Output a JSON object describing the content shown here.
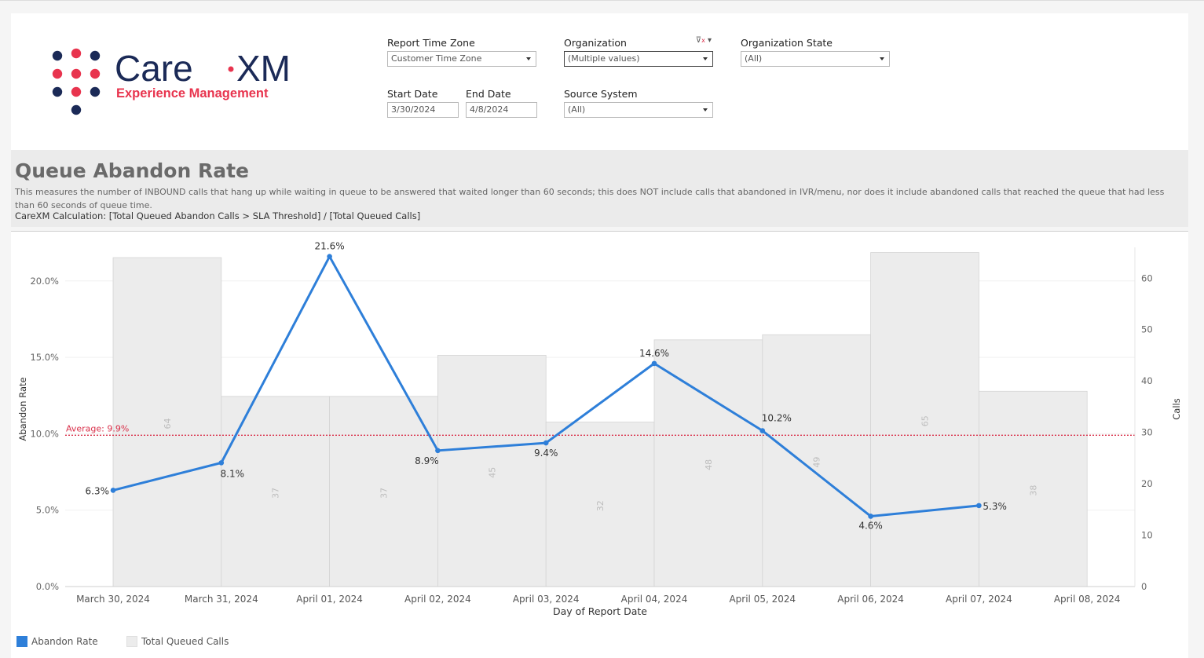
{
  "brand": {
    "name_part1": "Care",
    "name_part2": "XM",
    "tagline": "Experience Management",
    "colors": {
      "navy": "#1b2a57",
      "red": "#e8344e"
    }
  },
  "filters": {
    "report_time_zone": {
      "label": "Report Time Zone",
      "value": "Customer Time Zone"
    },
    "organization": {
      "label": "Organization",
      "value": "(Multiple values)"
    },
    "organization_state": {
      "label": "Organization State",
      "value": "(All)"
    },
    "start_date": {
      "label": "Start Date",
      "value": "3/30/2024"
    },
    "end_date": {
      "label": "End Date",
      "value": "4/8/2024"
    },
    "source_system": {
      "label": "Source System",
      "value": "(All)"
    }
  },
  "header": {
    "title": "Queue Abandon Rate",
    "description": "This measures the number of INBOUND calls that hang up while waiting in queue to be answered that waited longer than 60 seconds; this does NOT include calls that abandoned in IVR/menu, nor does it include abandoned calls that reached the queue that had less than 60 seconds of queue time.",
    "calculation": "CareXM Calculation: [Total Queued Abandon Calls > SLA Threshold] / [Total Queued Calls]"
  },
  "legend": [
    {
      "name": "Abandon Rate",
      "color": "#2e7fd9"
    },
    {
      "name": "Total Queued Calls",
      "color": "#ececec"
    }
  ],
  "chart_data": {
    "type": "bar",
    "xlabel": "Day of Report Date",
    "ylabel": "Abandon Rate",
    "y2label": "Calls",
    "categories": [
      "March 30, 2024",
      "March 31, 2024",
      "April 01, 2024",
      "April 02, 2024",
      "April 03, 2024",
      "April 04, 2024",
      "April 05, 2024",
      "April 06, 2024",
      "April 07, 2024",
      "April 08, 2024"
    ],
    "series": [
      {
        "name": "Total Queued Calls",
        "type": "bar",
        "axis": "right",
        "color": "#ececec",
        "values": [
          64,
          37,
          37,
          45,
          32,
          48,
          49,
          65,
          38,
          null
        ],
        "labels": [
          "64",
          "37",
          "37",
          "45",
          "32",
          "48",
          "49",
          "65",
          "38",
          ""
        ]
      },
      {
        "name": "Abandon Rate",
        "type": "line",
        "axis": "left",
        "color": "#2e7fd9",
        "values": [
          6.3,
          8.1,
          21.6,
          8.9,
          9.4,
          14.6,
          10.2,
          4.6,
          5.3,
          null
        ],
        "labels": [
          "6.3%",
          "8.1%",
          "21.6%",
          "8.9%",
          "9.4%",
          "14.6%",
          "10.2%",
          "4.6%",
          "5.3%",
          ""
        ]
      }
    ],
    "ylim": [
      0,
      22.2
    ],
    "y2lim": [
      0,
      66
    ],
    "yticks": [
      0,
      5,
      10,
      15,
      20
    ],
    "ytick_labels": [
      "0.0%",
      "5.0%",
      "10.0%",
      "15.0%",
      "20.0%"
    ],
    "y2ticks": [
      0,
      10,
      20,
      30,
      40,
      50,
      60
    ],
    "y2tick_labels": [
      "0",
      "10",
      "20",
      "30",
      "40",
      "50",
      "60"
    ],
    "reference_line": {
      "value": 9.9,
      "label": "Average: 9.9%",
      "color": "#d9304a"
    },
    "grid": true
  }
}
